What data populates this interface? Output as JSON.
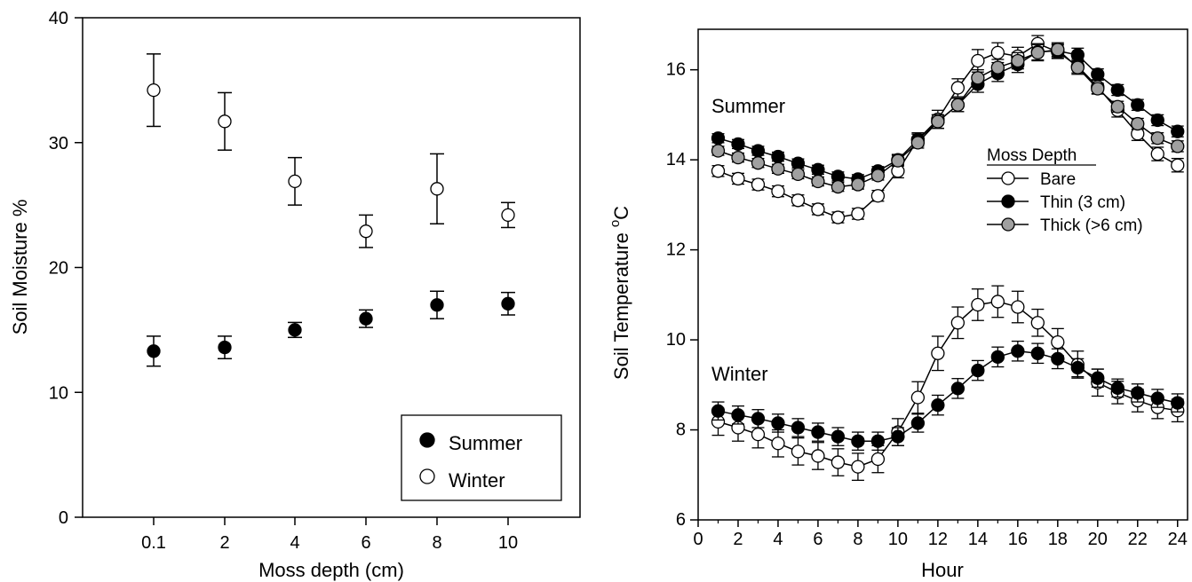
{
  "chart_data": [
    {
      "type": "scatter",
      "xlabel": "Moss depth (cm)",
      "ylabel": "Soil Moisture %",
      "ylim": [
        0,
        40
      ],
      "yticks": [
        0,
        10,
        20,
        30,
        40
      ],
      "categories": [
        "0.1",
        "2",
        "4",
        "6",
        "8",
        "10"
      ],
      "grid": false,
      "legend_position": "bottom-right",
      "series": [
        {
          "name": "Summer",
          "marker": "filled",
          "color": "#000000",
          "values": [
            13.3,
            13.6,
            15.0,
            15.9,
            17.0,
            17.1
          ],
          "err": [
            1.2,
            0.9,
            0.6,
            0.7,
            1.1,
            0.9
          ]
        },
        {
          "name": "Winter",
          "marker": "open",
          "color": "#ffffff",
          "values": [
            34.2,
            31.7,
            26.9,
            22.9,
            26.3,
            24.2
          ],
          "err": [
            2.9,
            2.3,
            1.9,
            1.3,
            2.8,
            1.0
          ]
        }
      ]
    },
    {
      "type": "line",
      "xlabel": "Hour",
      "ylabel": "Soil Temperature",
      "ylabel_sup": "o",
      "ylabel_suffix": "C",
      "xlim": [
        0,
        24.5
      ],
      "ylim": [
        6,
        16.9
      ],
      "xticks": [
        0,
        2,
        4,
        6,
        8,
        10,
        12,
        14,
        16,
        18,
        20,
        22,
        24
      ],
      "yticks": [
        6,
        8,
        10,
        12,
        14,
        16
      ],
      "grid": false,
      "legend_title": "Moss Depth",
      "legend_position": "right",
      "annotations": [
        "Summer",
        "Winter"
      ],
      "x": [
        1,
        2,
        3,
        4,
        5,
        6,
        7,
        8,
        9,
        10,
        11,
        12,
        13,
        14,
        15,
        16,
        17,
        18,
        19,
        20,
        21,
        22,
        23,
        24
      ],
      "groups": [
        {
          "label": "Summer",
          "series": [
            {
              "name": "Bare",
              "fill": "#ffffff",
              "values": [
                13.75,
                13.58,
                13.45,
                13.3,
                13.1,
                12.9,
                12.72,
                12.8,
                13.2,
                13.75,
                14.45,
                14.9,
                15.6,
                16.2,
                16.38,
                16.3,
                16.58,
                16.4,
                16.08,
                15.62,
                15.1,
                14.58,
                14.13,
                13.88
              ],
              "err": [
                0.12,
                0.12,
                0.12,
                0.12,
                0.12,
                0.12,
                0.12,
                0.12,
                0.12,
                0.15,
                0.15,
                0.2,
                0.2,
                0.25,
                0.22,
                0.2,
                0.18,
                0.15,
                0.15,
                0.15,
                0.15,
                0.15,
                0.15,
                0.15
              ]
            },
            {
              "name": "Thin (3 cm)",
              "fill": "#000000",
              "values": [
                14.48,
                14.35,
                14.2,
                14.07,
                13.92,
                13.78,
                13.63,
                13.57,
                13.75,
                14.0,
                14.45,
                14.85,
                15.22,
                15.68,
                15.92,
                16.12,
                16.4,
                16.42,
                16.33,
                15.9,
                15.55,
                15.22,
                14.88,
                14.63
              ],
              "err": [
                0.1,
                0.1,
                0.1,
                0.1,
                0.1,
                0.1,
                0.1,
                0.1,
                0.1,
                0.12,
                0.12,
                0.15,
                0.15,
                0.18,
                0.18,
                0.18,
                0.18,
                0.15,
                0.15,
                0.12,
                0.12,
                0.12,
                0.12,
                0.12
              ]
            },
            {
              "name": "Thick (>6 cm)",
              "fill": "#a0a0a0",
              "values": [
                14.2,
                14.05,
                13.93,
                13.8,
                13.68,
                13.52,
                13.4,
                13.45,
                13.65,
                13.98,
                14.38,
                14.85,
                15.22,
                15.82,
                16.05,
                16.2,
                16.38,
                16.45,
                16.05,
                15.58,
                15.18,
                14.8,
                14.48,
                14.3
              ],
              "err": [
                0.1,
                0.1,
                0.1,
                0.1,
                0.1,
                0.1,
                0.1,
                0.1,
                0.1,
                0.12,
                0.12,
                0.15,
                0.15,
                0.18,
                0.18,
                0.18,
                0.18,
                0.15,
                0.15,
                0.12,
                0.12,
                0.12,
                0.12,
                0.12
              ]
            }
          ]
        },
        {
          "label": "Winter",
          "series": [
            {
              "name": "Bare",
              "fill": "#ffffff",
              "values": [
                8.18,
                8.05,
                7.9,
                7.7,
                7.52,
                7.42,
                7.28,
                7.18,
                7.35,
                7.95,
                8.72,
                9.7,
                10.38,
                10.78,
                10.85,
                10.73,
                10.38,
                9.95,
                9.45,
                9.05,
                8.83,
                8.65,
                8.5,
                8.43
              ],
              "err": [
                0.3,
                0.3,
                0.3,
                0.3,
                0.3,
                0.3,
                0.3,
                0.3,
                0.3,
                0.3,
                0.35,
                0.38,
                0.35,
                0.35,
                0.35,
                0.35,
                0.3,
                0.3,
                0.3,
                0.3,
                0.25,
                0.25,
                0.25,
                0.25
              ]
            },
            {
              "name": "Thin (3 cm)",
              "fill": "#000000",
              "values": [
                8.42,
                8.33,
                8.25,
                8.15,
                8.05,
                7.95,
                7.85,
                7.75,
                7.75,
                7.85,
                8.15,
                8.55,
                8.92,
                9.32,
                9.62,
                9.75,
                9.7,
                9.58,
                9.38,
                9.15,
                8.93,
                8.82,
                8.7,
                8.6
              ],
              "err": [
                0.2,
                0.2,
                0.2,
                0.2,
                0.2,
                0.2,
                0.2,
                0.2,
                0.2,
                0.2,
                0.2,
                0.22,
                0.22,
                0.22,
                0.22,
                0.22,
                0.22,
                0.22,
                0.2,
                0.2,
                0.2,
                0.2,
                0.2,
                0.2
              ]
            }
          ]
        }
      ]
    }
  ]
}
